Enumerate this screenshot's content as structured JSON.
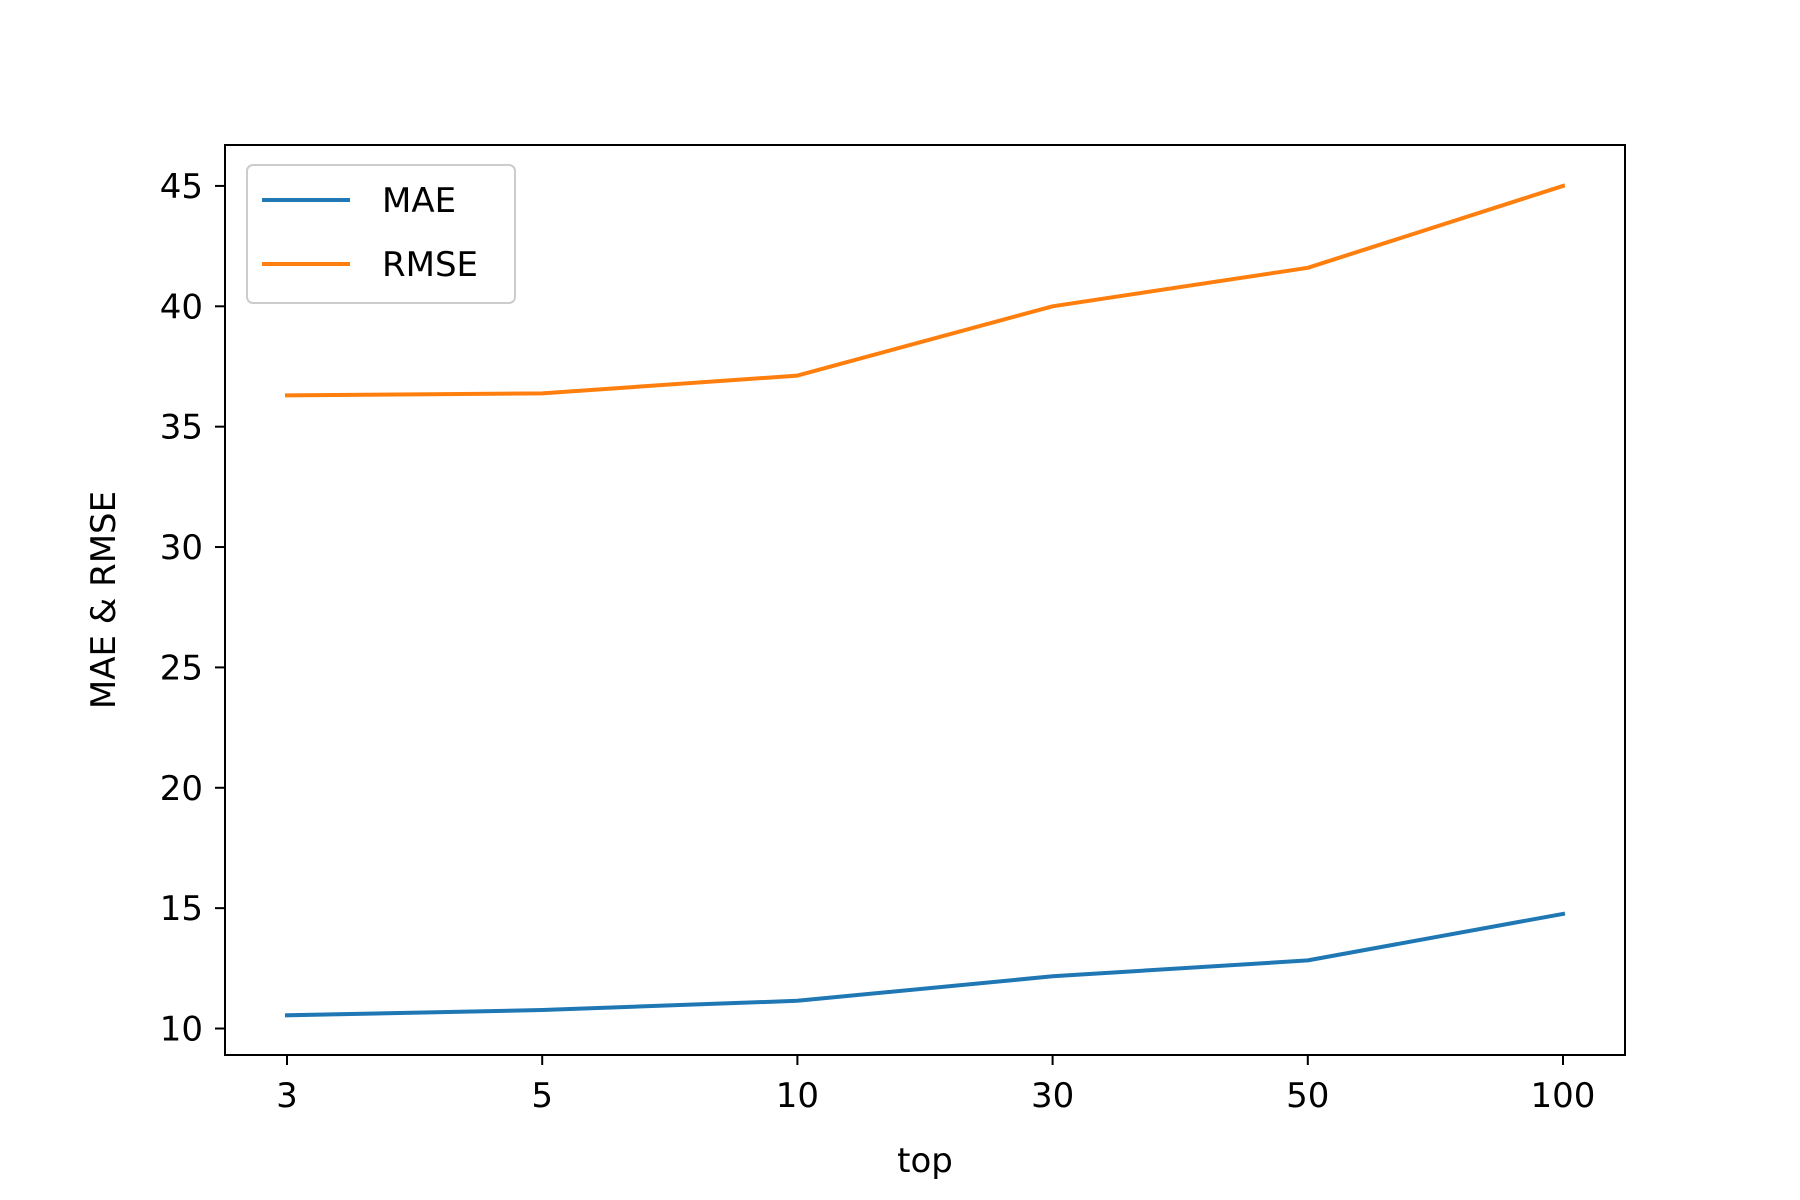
{
  "chart_data": {
    "type": "line",
    "categories": [
      "3",
      "5",
      "10",
      "30",
      "50",
      "100"
    ],
    "series": [
      {
        "name": "MAE",
        "values": [
          10.55,
          10.77,
          11.15,
          12.17,
          12.83,
          14.76
        ],
        "color": "#1f77b4"
      },
      {
        "name": "RMSE",
        "values": [
          36.3,
          36.38,
          37.12,
          40.0,
          41.6,
          45.0
        ],
        "color": "#ff7f0e"
      }
    ],
    "xlabel": "top",
    "ylabel": "MAE & RMSE",
    "yticks": [
      10,
      15,
      20,
      25,
      30,
      35,
      40,
      45
    ],
    "ylim": [
      8.9,
      46.7
    ],
    "grid": false,
    "legend": "top-left"
  }
}
